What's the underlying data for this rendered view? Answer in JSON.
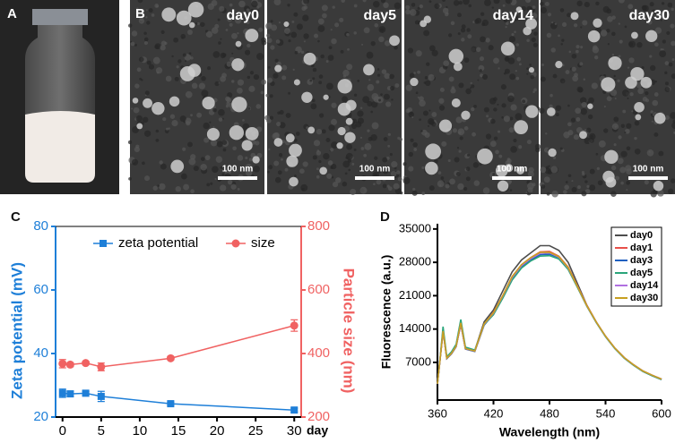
{
  "panels": [
    {
      "label": "A"
    },
    {
      "label": "B",
      "images": [
        {
          "title": "day0",
          "scale_bar": "100 nm"
        },
        {
          "title": "day5",
          "scale_bar": "100 nm"
        },
        {
          "title": "day14",
          "scale_bar": "100 nm"
        },
        {
          "title": "day30",
          "scale_bar": "100 nm"
        }
      ]
    }
  ],
  "chart_data": [
    {
      "type": "line",
      "panel": "C",
      "xlabel": "day",
      "ylabel": "Zeta potential (mV)",
      "y2label": "Particle size (nm)",
      "x": [
        0,
        1,
        3,
        5,
        14,
        30
      ],
      "xlim": [
        -0.9,
        30.9
      ],
      "xticks": [
        0,
        5,
        10,
        15,
        20,
        25,
        30
      ],
      "ylim": [
        20,
        80
      ],
      "yticks": [
        20,
        40,
        60,
        80
      ],
      "y2lim": [
        200,
        800
      ],
      "y2ticks": [
        200,
        400,
        600,
        800
      ],
      "legend": "top",
      "series": [
        {
          "name": "zeta potential",
          "color": "#1e7fd8",
          "marker": "square",
          "axis": "y",
          "values": [
            27.5,
            27.3,
            27.5,
            26.5,
            24.2,
            22.2
          ],
          "errors": [
            1.3,
            0.8,
            0.6,
            1.6,
            0.5,
            0.6
          ]
        },
        {
          "name": "size",
          "color": "#f06262",
          "marker": "circle",
          "axis": "y2",
          "values": [
            368,
            365,
            370,
            358,
            385,
            488
          ],
          "errors": [
            13,
            6,
            5,
            12,
            5,
            18
          ]
        }
      ]
    },
    {
      "type": "line",
      "panel": "D",
      "xlabel": "Wavelength (nm)",
      "ylabel": "Fluorescence (a.u.)",
      "x": [
        360,
        363,
        366,
        370,
        375,
        380,
        385,
        390,
        400,
        410,
        420,
        430,
        440,
        450,
        460,
        470,
        480,
        490,
        500,
        510,
        520,
        530,
        540,
        550,
        560,
        570,
        580,
        590,
        600
      ],
      "xlim": [
        360,
        600
      ],
      "xticks": [
        360,
        420,
        480,
        540,
        600
      ],
      "ylim": [
        -900,
        36100
      ],
      "yticks": [
        7000,
        14000,
        21000,
        28000,
        35000
      ],
      "legend": "upper right",
      "series": [
        {
          "name": "day0",
          "color": "#4d4d4d",
          "values": [
            2500,
            8000,
            13500,
            8000,
            9000,
            10500,
            15000,
            10000,
            9500,
            15500,
            18000,
            22000,
            26000,
            28500,
            30000,
            31500,
            31500,
            30500,
            28000,
            23500,
            19000,
            15500,
            12500,
            10000,
            8000,
            6500,
            5200,
            4300,
            3500
          ]
        },
        {
          "name": "day1",
          "color": "#e8504a",
          "values": [
            2500,
            8000,
            13500,
            7800,
            8800,
            10300,
            15000,
            9800,
            9300,
            15000,
            17500,
            21000,
            25000,
            27500,
            29000,
            30200,
            30300,
            29300,
            27000,
            23000,
            19000,
            15500,
            12500,
            10000,
            8000,
            6500,
            5200,
            4300,
            3500
          ]
        },
        {
          "name": "day3",
          "color": "#2060c0",
          "values": [
            2500,
            8000,
            13800,
            7800,
            8800,
            10300,
            15200,
            9800,
            9300,
            14800,
            17200,
            20700,
            24600,
            27000,
            28500,
            29600,
            29700,
            29000,
            26700,
            22800,
            18800,
            15400,
            12400,
            9900,
            7900,
            6400,
            5100,
            4200,
            3400
          ]
        },
        {
          "name": "day5",
          "color": "#2aa57a",
          "values": [
            2500,
            8200,
            14500,
            8200,
            9200,
            10800,
            16000,
            10200,
            9600,
            14900,
            17000,
            20500,
            24300,
            26800,
            28300,
            29300,
            29400,
            28700,
            26500,
            22700,
            18800,
            15400,
            12400,
            9900,
            7900,
            6400,
            5100,
            4200,
            3400
          ]
        },
        {
          "name": "day14",
          "color": "#b070e0",
          "values": [
            2500,
            8000,
            13500,
            7900,
            8900,
            10400,
            15200,
            9900,
            9400,
            15000,
            17300,
            20900,
            24800,
            27300,
            28800,
            29900,
            30000,
            29100,
            26800,
            22900,
            18900,
            15500,
            12500,
            10000,
            8000,
            6500,
            5200,
            4300,
            3500
          ]
        },
        {
          "name": "day30",
          "color": "#c8a020",
          "values": [
            2500,
            8000,
            13600,
            7900,
            8900,
            10400,
            15300,
            9900,
            9400,
            15100,
            17400,
            21000,
            25000,
            27500,
            29000,
            30100,
            30100,
            29200,
            26900,
            22900,
            18900,
            15500,
            12500,
            10000,
            8000,
            6500,
            5200,
            4300,
            3500
          ]
        }
      ]
    }
  ]
}
